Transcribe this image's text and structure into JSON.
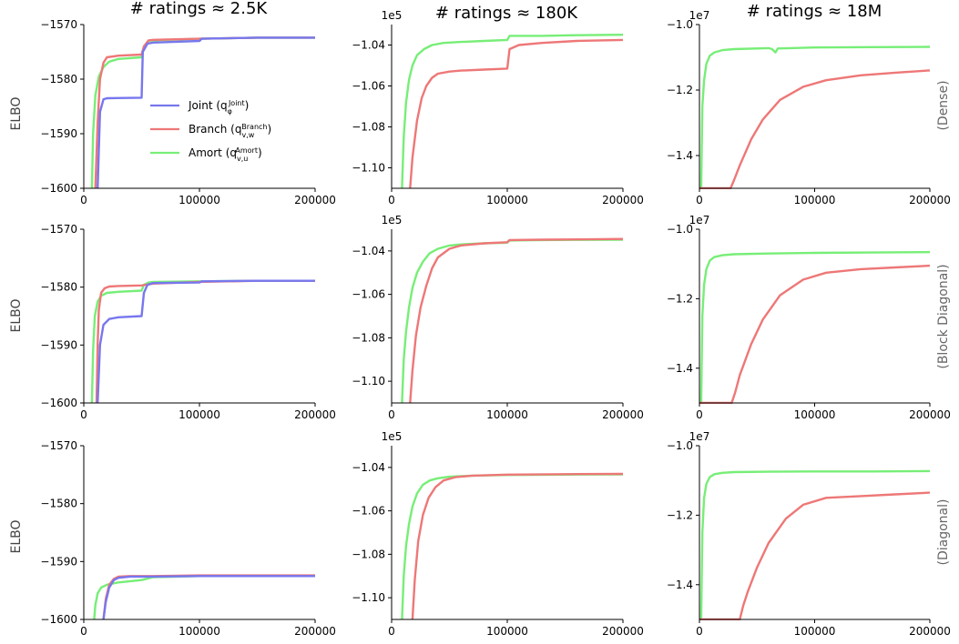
{
  "col_titles": [
    "# ratings ≈ 2.5K",
    "# ratings ≈ 180K",
    "# ratings ≈ 18M"
  ],
  "row_labels": [
    "(Dense)",
    "(Block Diagonal)",
    "(Diagonal)"
  ],
  "ylabel": "ELBO",
  "colors": {
    "joint": "#7777ee",
    "branch": "#ee7777",
    "amort": "#77ee77",
    "overlap": "#6b8f3d",
    "joint_branch_overlap": "#aa4488"
  },
  "legend": {
    "entries": [
      {
        "key": "joint",
        "label": "Joint",
        "sub": "φ",
        "sup": "Joint"
      },
      {
        "key": "branch",
        "label": "Branch",
        "sub": "v,w",
        "sup": "Branch"
      },
      {
        "key": "amort",
        "label": "Amort",
        "sub": "v,u",
        "sup": "Amort"
      }
    ]
  },
  "chart_data": [
    {
      "type": "line",
      "row": 0,
      "col": 0,
      "xlim": [
        0,
        200000
      ],
      "ylim": [
        -1600,
        -1570
      ],
      "xticks": [
        "0",
        "100000",
        "200000"
      ],
      "yticks": [
        "−1600",
        "−1590",
        "−1580",
        "−1570"
      ],
      "ytick_values": [
        -1600,
        -1590,
        -1580,
        -1570
      ],
      "exponent": "",
      "series": [
        {
          "key": "joint",
          "x": [
            12000,
            14000,
            17000,
            20000,
            50000,
            51000,
            55000,
            60000,
            100000,
            102000,
            150000,
            200000
          ],
          "y": [
            -1600,
            -1586,
            -1583.7,
            -1583.5,
            -1583.4,
            -1575,
            -1573.5,
            -1573.3,
            -1573.0,
            -1572.6,
            -1572.4,
            -1572.4
          ]
        },
        {
          "key": "branch",
          "x": [
            10000,
            12000,
            14000,
            17000,
            20000,
            30000,
            50000,
            52000,
            56000,
            60000,
            100000,
            150000,
            200000
          ],
          "y": [
            -1600,
            -1588,
            -1580,
            -1577,
            -1576,
            -1575.7,
            -1575.5,
            -1574,
            -1572.9,
            -1572.8,
            -1572.6,
            -1572.4,
            -1572.4
          ]
        },
        {
          "key": "amort",
          "x": [
            7000,
            8000,
            10000,
            13000,
            17000,
            22000,
            30000,
            50000,
            52000,
            56000,
            60000,
            100000,
            150000,
            200000
          ],
          "y": [
            -1600,
            -1590,
            -1583,
            -1579.5,
            -1577.8,
            -1576.8,
            -1576.3,
            -1576,
            -1574,
            -1573,
            -1572.9,
            -1572.6,
            -1572.4,
            -1572.4
          ]
        }
      ]
    },
    {
      "type": "line",
      "row": 0,
      "col": 1,
      "xlim": [
        0,
        200000
      ],
      "ylim": [
        -1.11,
        -1.03
      ],
      "xticks": [
        "0",
        "100000",
        "200000"
      ],
      "yticks": [
        "−1.10",
        "−1.08",
        "−1.06",
        "−1.04"
      ],
      "ytick_values": [
        -1.1,
        -1.08,
        -1.06,
        -1.04
      ],
      "exponent": "1e5",
      "series": [
        {
          "key": "branch",
          "x": [
            16000,
            18000,
            22000,
            26000,
            30000,
            35000,
            40000,
            50000,
            60000,
            80000,
            100000,
            102000,
            110000,
            130000,
            160000,
            200000
          ],
          "y": [
            -1.11,
            -1.095,
            -1.077,
            -1.066,
            -1.06,
            -1.056,
            -1.054,
            -1.053,
            -1.0525,
            -1.052,
            -1.0515,
            -1.042,
            -1.04,
            -1.039,
            -1.038,
            -1.0375
          ]
        },
        {
          "key": "amort",
          "x": [
            9000,
            10500,
            12500,
            15000,
            18000,
            22000,
            28000,
            35000,
            45000,
            60000,
            80000,
            100000,
            102000,
            130000,
            160000,
            200000
          ],
          "y": [
            -1.11,
            -1.085,
            -1.068,
            -1.057,
            -1.05,
            -1.045,
            -1.042,
            -1.04,
            -1.039,
            -1.0385,
            -1.038,
            -1.0375,
            -1.0355,
            -1.0355,
            -1.0352,
            -1.035
          ]
        }
      ]
    },
    {
      "type": "line",
      "row": 0,
      "col": 2,
      "xlim": [
        0,
        200000
      ],
      "ylim": [
        -1.5,
        -1.0
      ],
      "xticks": [
        "0",
        "100000",
        "200000"
      ],
      "yticks": [
        "−1.4",
        "−1.2",
        "−1.0"
      ],
      "ytick_values": [
        -1.4,
        -1.2,
        -1.0
      ],
      "exponent": "1e7",
      "series": [
        {
          "key": "branch",
          "x": [
            0,
            27000,
            30000,
            35000,
            45000,
            55000,
            70000,
            90000,
            110000,
            140000,
            170000,
            200000
          ],
          "y": [
            -1.5,
            -1.5,
            -1.475,
            -1.43,
            -1.35,
            -1.29,
            -1.23,
            -1.19,
            -1.17,
            -1.155,
            -1.147,
            -1.14
          ]
        },
        {
          "key": "amort",
          "x": [
            1500,
            2500,
            4000,
            6000,
            9000,
            13000,
            20000,
            30000,
            60000,
            63000,
            66000,
            68000,
            100000,
            150000,
            200000
          ],
          "y": [
            -1.5,
            -1.25,
            -1.17,
            -1.12,
            -1.095,
            -1.085,
            -1.078,
            -1.075,
            -1.072,
            -1.075,
            -1.085,
            -1.073,
            -1.07,
            -1.069,
            -1.068
          ]
        }
      ]
    },
    {
      "type": "line",
      "row": 1,
      "col": 0,
      "xlim": [
        0,
        200000
      ],
      "ylim": [
        -1600,
        -1570
      ],
      "xticks": [
        "0",
        "100000",
        "200000"
      ],
      "yticks": [
        "−1600",
        "−1590",
        "−1580",
        "−1570"
      ],
      "ytick_values": [
        -1600,
        -1590,
        -1580,
        -1570
      ],
      "exponent": "",
      "series": [
        {
          "key": "joint",
          "x": [
            12000,
            14000,
            17000,
            22000,
            30000,
            50000,
            52000,
            55000,
            60000,
            100000,
            102000,
            150000,
            200000
          ],
          "y": [
            -1600,
            -1590,
            -1586.5,
            -1585.5,
            -1585.2,
            -1585,
            -1581,
            -1579.6,
            -1579.3,
            -1579.2,
            -1579.0,
            -1578.9,
            -1578.9
          ]
        },
        {
          "key": "branch",
          "x": [
            11000,
            12000,
            13000,
            15000,
            18000,
            22000,
            30000,
            50000,
            60000,
            100000,
            150000,
            200000
          ],
          "y": [
            -1600,
            -1590,
            -1584,
            -1581,
            -1580.2,
            -1579.9,
            -1579.8,
            -1579.7,
            -1579.4,
            -1579.1,
            -1578.9,
            -1578.9
          ]
        },
        {
          "key": "amort",
          "x": [
            7000,
            8000,
            9500,
            12000,
            15000,
            20000,
            30000,
            50000,
            52000,
            56000,
            60000,
            100000,
            150000,
            200000
          ],
          "y": [
            -1600,
            -1591,
            -1585,
            -1582.5,
            -1581.5,
            -1581,
            -1580.8,
            -1580.6,
            -1579.6,
            -1579.2,
            -1579.1,
            -1579.0,
            -1578.9,
            -1578.9
          ]
        }
      ]
    },
    {
      "type": "line",
      "row": 1,
      "col": 1,
      "xlim": [
        0,
        200000
      ],
      "ylim": [
        -1.11,
        -1.03
      ],
      "xticks": [
        "0",
        "100000",
        "200000"
      ],
      "yticks": [
        "−1.10",
        "−1.08",
        "−1.06",
        "−1.04"
      ],
      "ytick_values": [
        -1.1,
        -1.08,
        -1.06,
        -1.04
      ],
      "exponent": "1e5",
      "series": [
        {
          "key": "branch",
          "x": [
            16000,
            18000,
            21000,
            25000,
            30000,
            35000,
            40000,
            50000,
            60000,
            80000,
            100000,
            102000,
            130000,
            160000,
            200000
          ],
          "y": [
            -1.11,
            -1.095,
            -1.079,
            -1.066,
            -1.056,
            -1.048,
            -1.043,
            -1.039,
            -1.0375,
            -1.0365,
            -1.036,
            -1.035,
            -1.0348,
            -1.0347,
            -1.0345
          ]
        },
        {
          "key": "amort",
          "x": [
            9000,
            10500,
            12500,
            15000,
            18000,
            22000,
            27000,
            33000,
            40000,
            50000,
            60000,
            80000,
            100000,
            102000,
            130000,
            160000,
            200000
          ],
          "y": [
            -1.11,
            -1.09,
            -1.077,
            -1.066,
            -1.057,
            -1.05,
            -1.045,
            -1.041,
            -1.039,
            -1.0375,
            -1.037,
            -1.0365,
            -1.0362,
            -1.0352,
            -1.035,
            -1.0349,
            -1.0348
          ]
        }
      ]
    },
    {
      "type": "line",
      "row": 1,
      "col": 2,
      "xlim": [
        0,
        200000
      ],
      "ylim": [
        -1.5,
        -1.0
      ],
      "xticks": [
        "0",
        "100000",
        "200000"
      ],
      "yticks": [
        "−1.4",
        "−1.2",
        "−1.0"
      ],
      "ytick_values": [
        -1.4,
        -1.2,
        -1.0
      ],
      "exponent": "1e7",
      "series": [
        {
          "key": "branch",
          "x": [
            0,
            28000,
            31000,
            35000,
            45000,
            55000,
            70000,
            90000,
            110000,
            140000,
            170000,
            200000
          ],
          "y": [
            -1.5,
            -1.5,
            -1.47,
            -1.42,
            -1.33,
            -1.26,
            -1.19,
            -1.145,
            -1.125,
            -1.115,
            -1.11,
            -1.105
          ]
        },
        {
          "key": "amort",
          "x": [
            1500,
            2500,
            4000,
            6000,
            9000,
            13000,
            20000,
            30000,
            60000,
            100000,
            150000,
            200000
          ],
          "y": [
            -1.5,
            -1.25,
            -1.16,
            -1.115,
            -1.09,
            -1.08,
            -1.075,
            -1.072,
            -1.07,
            -1.068,
            -1.067,
            -1.066
          ]
        }
      ]
    },
    {
      "type": "line",
      "row": 2,
      "col": 0,
      "xlim": [
        0,
        200000
      ],
      "ylim": [
        -1600,
        -1570
      ],
      "xticks": [
        "0",
        "100000",
        "200000"
      ],
      "yticks": [
        "−1600",
        "−1590",
        "−1580",
        "−1570"
      ],
      "ytick_values": [
        -1600,
        -1590,
        -1580,
        -1570
      ],
      "exponent": "",
      "series": [
        {
          "key": "joint",
          "x": [
            17000,
            19000,
            22000,
            26000,
            30000,
            40000,
            60000,
            100000,
            150000,
            200000
          ],
          "y": [
            -1600,
            -1597,
            -1594.5,
            -1593.2,
            -1592.8,
            -1592.6,
            -1592.6,
            -1592.5,
            -1592.5,
            -1592.5
          ]
        },
        {
          "key": "branch",
          "x": [
            17000,
            19000,
            22000,
            26000,
            30000,
            40000,
            60000,
            100000,
            150000,
            200000
          ],
          "y": [
            -1600,
            -1596.5,
            -1594,
            -1593,
            -1592.6,
            -1592.5,
            -1592.5,
            -1592.4,
            -1592.4,
            -1592.4
          ]
        },
        {
          "key": "amort",
          "x": [
            9000,
            10000,
            12000,
            15000,
            20000,
            30000,
            50000,
            60000,
            100000,
            150000,
            200000
          ],
          "y": [
            -1600,
            -1597.5,
            -1595.5,
            -1594.5,
            -1594,
            -1593.6,
            -1593.2,
            -1592.7,
            -1592.5,
            -1592.5,
            -1592.5
          ]
        }
      ]
    },
    {
      "type": "line",
      "row": 2,
      "col": 1,
      "xlim": [
        0,
        200000
      ],
      "ylim": [
        -1.11,
        -1.03
      ],
      "xticks": [
        "0",
        "100000",
        "200000"
      ],
      "yticks": [
        "−1.10",
        "−1.08",
        "−1.06",
        "−1.04"
      ],
      "ytick_values": [
        -1.1,
        -1.08,
        -1.06,
        -1.04
      ],
      "exponent": "1e5",
      "series": [
        {
          "key": "branch",
          "x": [
            18000,
            20000,
            23000,
            27000,
            32000,
            38000,
            45000,
            55000,
            70000,
            100000,
            150000,
            200000
          ],
          "y": [
            -1.11,
            -1.092,
            -1.074,
            -1.062,
            -1.054,
            -1.049,
            -1.046,
            -1.0445,
            -1.0438,
            -1.0433,
            -1.0431,
            -1.043
          ]
        },
        {
          "key": "amort",
          "x": [
            9000,
            10500,
            12500,
            15000,
            18000,
            22000,
            27000,
            33000,
            40000,
            50000,
            70000,
            100000,
            150000,
            200000
          ],
          "y": [
            -1.11,
            -1.09,
            -1.076,
            -1.066,
            -1.058,
            -1.052,
            -1.048,
            -1.046,
            -1.045,
            -1.0443,
            -1.0438,
            -1.0435,
            -1.0433,
            -1.0432
          ]
        }
      ]
    },
    {
      "type": "line",
      "row": 2,
      "col": 2,
      "xlim": [
        0,
        200000
      ],
      "ylim": [
        -1.5,
        -1.0
      ],
      "xticks": [
        "0",
        "100000",
        "200000"
      ],
      "yticks": [
        "−1.4",
        "−1.2",
        "−1.0"
      ],
      "ytick_values": [
        -1.4,
        -1.2,
        -1.0
      ],
      "exponent": "1e7",
      "series": [
        {
          "key": "branch",
          "x": [
            0,
            35000,
            38000,
            42000,
            50000,
            60000,
            75000,
            90000,
            110000,
            140000,
            170000,
            200000
          ],
          "y": [
            -1.5,
            -1.5,
            -1.46,
            -1.42,
            -1.35,
            -1.28,
            -1.21,
            -1.17,
            -1.15,
            -1.145,
            -1.14,
            -1.135
          ]
        },
        {
          "key": "amort",
          "x": [
            1500,
            2500,
            4000,
            6000,
            9000,
            13000,
            20000,
            30000,
            60000,
            100000,
            150000,
            200000
          ],
          "y": [
            -1.5,
            -1.25,
            -1.15,
            -1.11,
            -1.09,
            -1.082,
            -1.078,
            -1.076,
            -1.075,
            -1.074,
            -1.074,
            -1.073
          ]
        }
      ]
    }
  ]
}
